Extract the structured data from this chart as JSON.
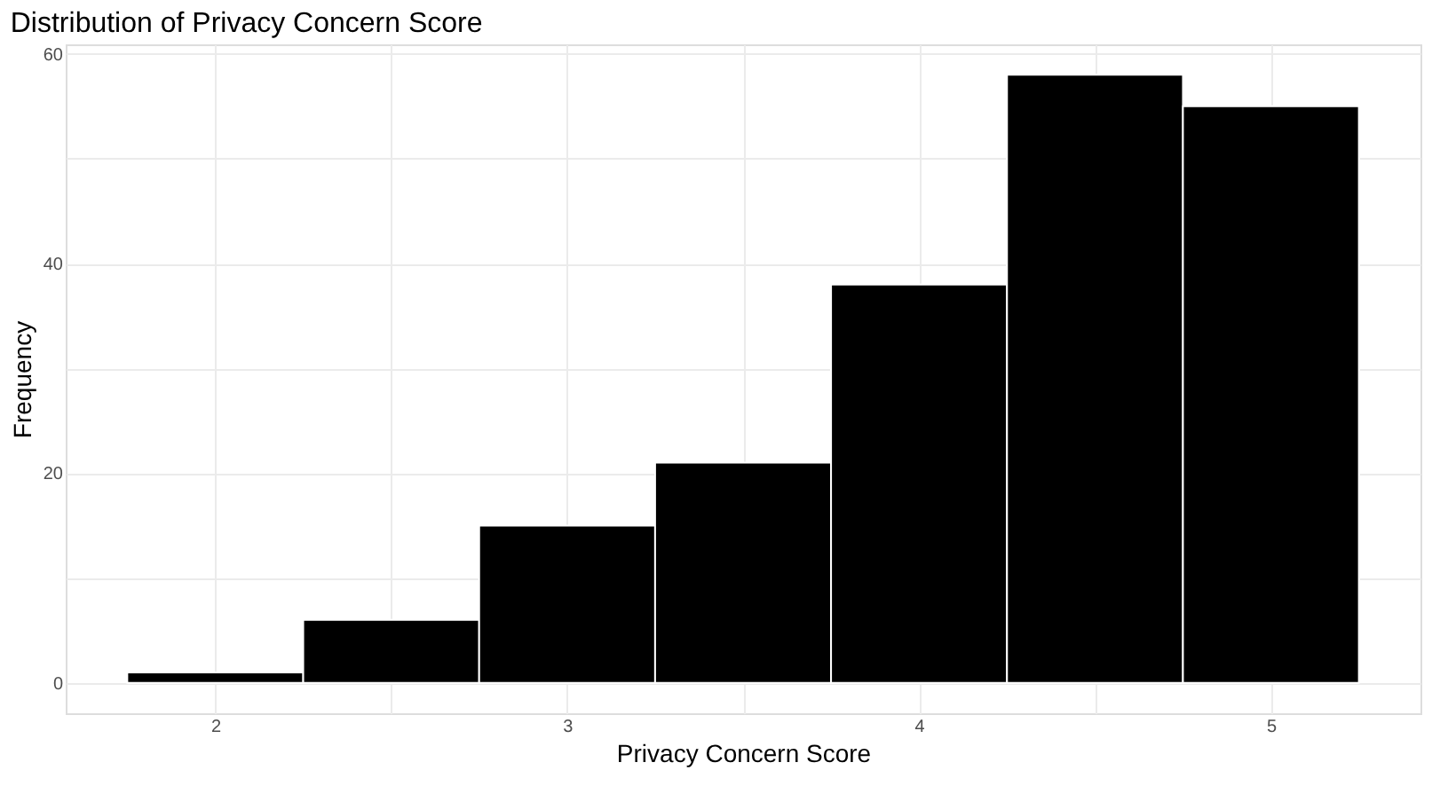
{
  "chart_data": {
    "type": "histogram",
    "title": "Distribution of Privacy Concern Score",
    "xlabel": "Privacy Concern Score",
    "ylabel": "Frequency",
    "bins": [
      1.75,
      2.25,
      2.75,
      3.25,
      3.75,
      4.25,
      4.75,
      5.25
    ],
    "values": [
      1,
      6,
      15,
      21,
      38,
      58,
      55
    ],
    "color": "#000000",
    "xlim": [
      1.575,
      5.425
    ],
    "ylim": [
      -2.9,
      60.9
    ],
    "xticks": [
      2,
      {
        "value": 2.5,
        "label": null
      },
      3,
      {
        "value": 3.5,
        "label": null
      },
      4,
      {
        "value": 4.5,
        "label": null
      },
      5
    ],
    "yticks": [
      0,
      {
        "value": 10,
        "label": null
      },
      20,
      {
        "value": 30,
        "label": null
      },
      40,
      {
        "value": 50,
        "label": null
      },
      60
    ],
    "grid": true
  }
}
